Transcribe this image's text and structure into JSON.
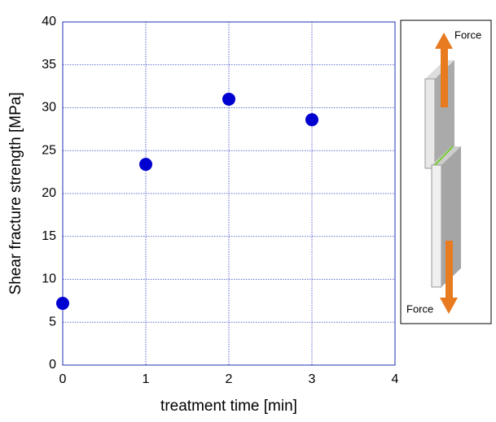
{
  "chart_data": {
    "type": "scatter",
    "x_label": "treatment time [min]",
    "y_label": "Shear fracture strength [MPa]",
    "x": [
      0,
      1,
      2,
      3
    ],
    "series": [
      {
        "color": "#0000d0",
        "values": [
          7.2,
          23.4,
          31,
          28.6
        ]
      }
    ],
    "xlim": [
      0,
      4
    ],
    "xticks": [
      0,
      1,
      2,
      3,
      4
    ],
    "ylim": [
      0,
      40
    ],
    "yticks": [
      0,
      5,
      10,
      15,
      20,
      25,
      30,
      35,
      40
    ],
    "grid": true,
    "annotations": [
      "Force",
      "Force"
    ]
  }
}
